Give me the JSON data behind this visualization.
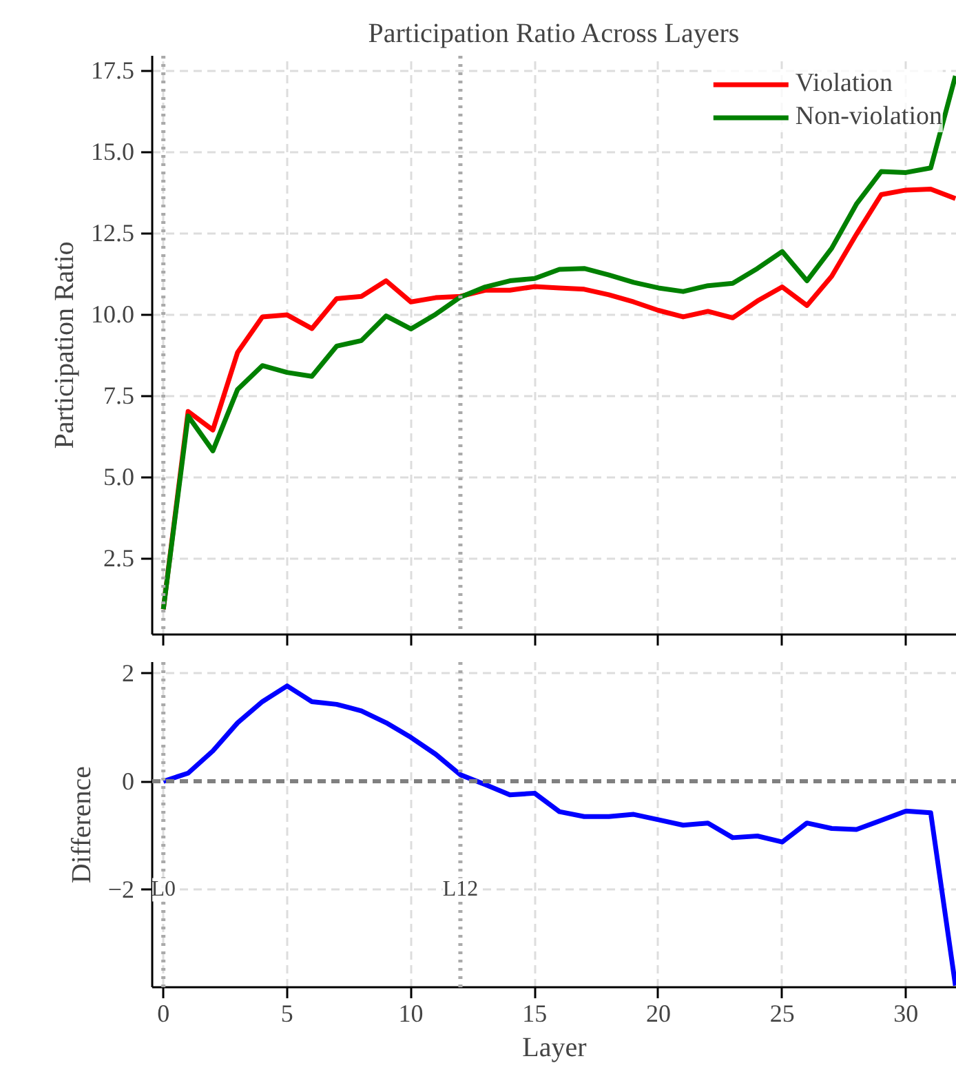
{
  "chart_data": [
    {
      "type": "line",
      "title": "Participation Ratio Across Layers",
      "ylabel": "Participation Ratio",
      "x": [
        0,
        1,
        2,
        3,
        4,
        5,
        6,
        7,
        8,
        9,
        10,
        11,
        12,
        13,
        14,
        15,
        16,
        17,
        18,
        19,
        20,
        21,
        22,
        23,
        24,
        25,
        26,
        27,
        28,
        29,
        30,
        31,
        32
      ],
      "series": [
        {
          "name": "Violation",
          "color": "#ff0000",
          "values": [
            0.93,
            7.01,
            6.44,
            8.83,
            9.92,
            9.98,
            9.56,
            10.48,
            10.55,
            11.03,
            10.38,
            10.51,
            10.55,
            10.74,
            10.74,
            10.85,
            10.81,
            10.77,
            10.6,
            10.38,
            10.12,
            9.92,
            10.09,
            9.89,
            10.41,
            10.84,
            10.27,
            11.17,
            12.46,
            13.68,
            13.82,
            13.85,
            13.56
          ]
        },
        {
          "name": "Non-violation",
          "color": "#008000",
          "values": [
            0.93,
            6.87,
            5.8,
            7.69,
            8.42,
            8.21,
            8.09,
            9.02,
            9.19,
            9.95,
            9.55,
            10.0,
            10.53,
            10.84,
            11.03,
            11.1,
            11.38,
            11.41,
            11.21,
            10.98,
            10.81,
            10.7,
            10.88,
            10.95,
            11.41,
            11.93,
            11.03,
            12.03,
            13.39,
            14.39,
            14.36,
            14.5,
            17.33
          ]
        }
      ],
      "xlim": [
        -0.45,
        32.05
      ],
      "ylim": [
        0.15,
        17.95
      ],
      "xticks": [
        0,
        5,
        10,
        15,
        20,
        25,
        30
      ],
      "yticks": [
        2.5,
        {
          "value": 5,
          "label": "5.0"
        },
        7.5,
        {
          "value": 10,
          "label": "10.0"
        },
        12.5,
        {
          "value": 15,
          "label": "15.0"
        },
        17.5
      ],
      "ref_lines": [
        {
          "axis": "x",
          "value": 0,
          "color": "#aaaaaa",
          "line_style": "dotted"
        },
        {
          "axis": "x",
          "value": 12,
          "color": "#aaaaaa",
          "line_style": "dotted"
        }
      ],
      "grid": true,
      "legend": "top right",
      "tick_labels": "y"
    },
    {
      "type": "line",
      "xlabel": "Layer",
      "ylabel": "Difference",
      "x": [
        0,
        1,
        2,
        3,
        4,
        5,
        6,
        7,
        8,
        9,
        10,
        11,
        12,
        13,
        14,
        15,
        16,
        17,
        18,
        19,
        20,
        21,
        22,
        23,
        24,
        25,
        26,
        27,
        28,
        29,
        30,
        31,
        32
      ],
      "series": [
        {
          "color": "#0000ff",
          "values": [
            0,
            0.15,
            0.56,
            1.08,
            1.47,
            1.76,
            1.47,
            1.42,
            1.3,
            1.08,
            0.81,
            0.5,
            0.12,
            -0.06,
            -0.25,
            -0.22,
            -0.56,
            -0.65,
            -0.65,
            -0.61,
            -0.71,
            -0.81,
            -0.77,
            -1.04,
            -1.01,
            -1.12,
            -0.77,
            -0.87,
            -0.89,
            -0.72,
            -0.55,
            -0.58,
            -3.77
          ]
        }
      ],
      "xlim": [
        -0.45,
        32.05
      ],
      "ylim": [
        -3.8,
        2.2
      ],
      "xticks": [
        0,
        5,
        10,
        15,
        20,
        25,
        30
      ],
      "yticks": [
        {
          "value": -2,
          "label": "−2"
        },
        0,
        2
      ],
      "ref_lines": [
        {
          "axis": "x",
          "value": 0,
          "label": "L0",
          "color": "#aaaaaa",
          "line_style": "dotted"
        },
        {
          "axis": "x",
          "value": 12,
          "label": "L12",
          "color": "#aaaaaa",
          "line_style": "dotted"
        },
        {
          "axis": "y",
          "value": 0,
          "color": "#808080",
          "line_style": "dashed"
        }
      ],
      "grid": true
    }
  ]
}
